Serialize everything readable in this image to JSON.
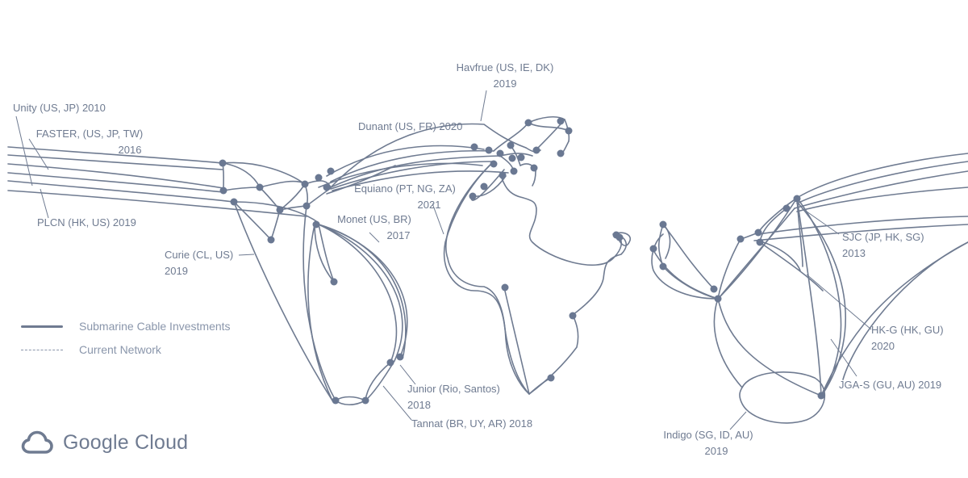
{
  "colors": {
    "line": "#6f7b91",
    "node": "#6a7892",
    "text": "#6f7b91"
  },
  "cables": [
    {
      "id": "havfrue",
      "line1": "Havfrue (US, IE, DK)",
      "line2": "2019"
    },
    {
      "id": "unity",
      "line1": "Unity (US, JP) 2010",
      "line2": ""
    },
    {
      "id": "dunant",
      "line1": "Dunant (US, FR) 2020",
      "line2": ""
    },
    {
      "id": "faster",
      "line1": "FASTER, (US, JP, TW)",
      "line2": "2016"
    },
    {
      "id": "equiano",
      "line1": "Equiano (PT, NG, ZA)",
      "line2": "2021"
    },
    {
      "id": "plcn",
      "line1": "PLCN (HK, US) 2019",
      "line2": ""
    },
    {
      "id": "monet",
      "line1": "Monet (US, BR)",
      "line2": "2017"
    },
    {
      "id": "sjc",
      "line1": "SJC (JP, HK, SG)",
      "line2": "2013"
    },
    {
      "id": "curie",
      "line1": "Curie (CL, US)",
      "line2": "2019"
    },
    {
      "id": "hkg",
      "line1": "HK-G (HK, GU)",
      "line2": "2020"
    },
    {
      "id": "junior",
      "line1": "Junior (Rio, Santos)",
      "line2": "2018"
    },
    {
      "id": "jgas",
      "line1": "JGA-S (GU, AU) 2019",
      "line2": ""
    },
    {
      "id": "tannat",
      "line1": "Tannat (BR, UY, AR) 2018",
      "line2": ""
    },
    {
      "id": "indigo",
      "line1": "Indigo (SG, ID, AU)",
      "line2": "2019"
    }
  ],
  "legend": {
    "investments": "Submarine Cable Investments",
    "current": "Current Network"
  },
  "brand": {
    "name": "Google Cloud",
    "icon": "cloud-icon"
  }
}
